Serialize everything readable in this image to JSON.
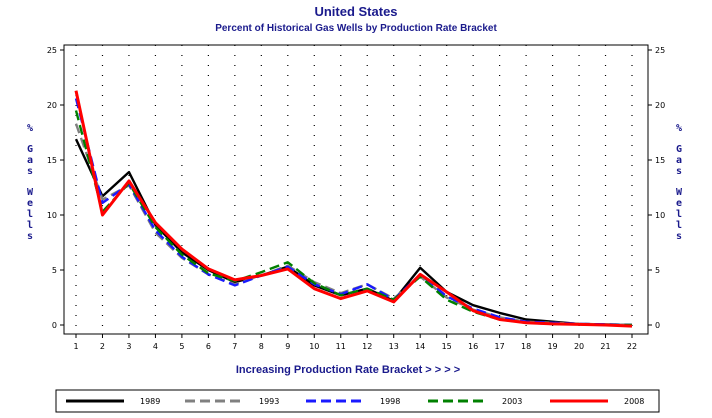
{
  "chart_data": {
    "type": "line",
    "title": "United States",
    "subtitle": "Percent of Historical Gas Wells by Production Rate Bracket",
    "xlabel": "Increasing Production Rate Bracket > > > >",
    "ylabel_left": "% Gas Wells",
    "ylabel_right": "% Gas Wells",
    "ylim": [
      0,
      25
    ],
    "yticks": [
      "0",
      "5",
      "10",
      "15",
      "20",
      "25"
    ],
    "categories": [
      "1",
      "2",
      "3",
      "4",
      "5",
      "6",
      "7",
      "8",
      "9",
      "10",
      "11",
      "12",
      "13",
      "14",
      "15",
      "16",
      "17",
      "18",
      "19",
      "20",
      "21",
      "22"
    ],
    "grid": true,
    "legend_position": "bottom",
    "series": [
      {
        "name": "1989",
        "color": "#000000",
        "dash": "solid",
        "values": [
          16.9,
          11.7,
          13.9,
          9.1,
          6.6,
          5.0,
          3.9,
          4.5,
          5.3,
          3.6,
          2.7,
          3.3,
          2.2,
          5.2,
          3.0,
          1.8,
          1.1,
          0.5,
          0.3,
          0.1,
          0.05,
          0.0
        ]
      },
      {
        "name": "1993",
        "color": "#808080",
        "dash": "dash",
        "values": [
          18.3,
          11.4,
          12.7,
          8.4,
          6.1,
          4.6,
          3.7,
          4.5,
          5.4,
          3.9,
          2.9,
          3.7,
          2.4,
          4.4,
          2.5,
          1.4,
          0.7,
          0.3,
          0.2,
          0.1,
          0.05,
          0.0
        ]
      },
      {
        "name": "1998",
        "color": "#1a1aff",
        "dash": "dash",
        "values": [
          20.6,
          11.1,
          12.8,
          8.6,
          6.2,
          4.6,
          3.6,
          4.5,
          5.3,
          3.7,
          2.8,
          3.7,
          2.3,
          4.6,
          2.6,
          1.5,
          0.7,
          0.3,
          0.2,
          0.1,
          0.05,
          0.0
        ]
      },
      {
        "name": "2003",
        "color": "#008000",
        "dash": "dash",
        "values": [
          19.5,
          10.3,
          12.9,
          8.9,
          6.4,
          4.7,
          4.0,
          4.8,
          5.7,
          3.8,
          2.7,
          3.3,
          2.3,
          4.4,
          2.3,
          1.2,
          0.5,
          0.2,
          0.1,
          0.05,
          0.0,
          0.0
        ]
      },
      {
        "name": "2008",
        "color": "#ff0000",
        "dash": "solid",
        "values": [
          21.3,
          10.0,
          13.1,
          9.3,
          6.9,
          5.1,
          4.1,
          4.5,
          5.1,
          3.3,
          2.4,
          3.1,
          2.1,
          4.6,
          3.0,
          1.3,
          0.5,
          0.2,
          0.1,
          0.05,
          0.0,
          -0.1
        ]
      }
    ]
  }
}
